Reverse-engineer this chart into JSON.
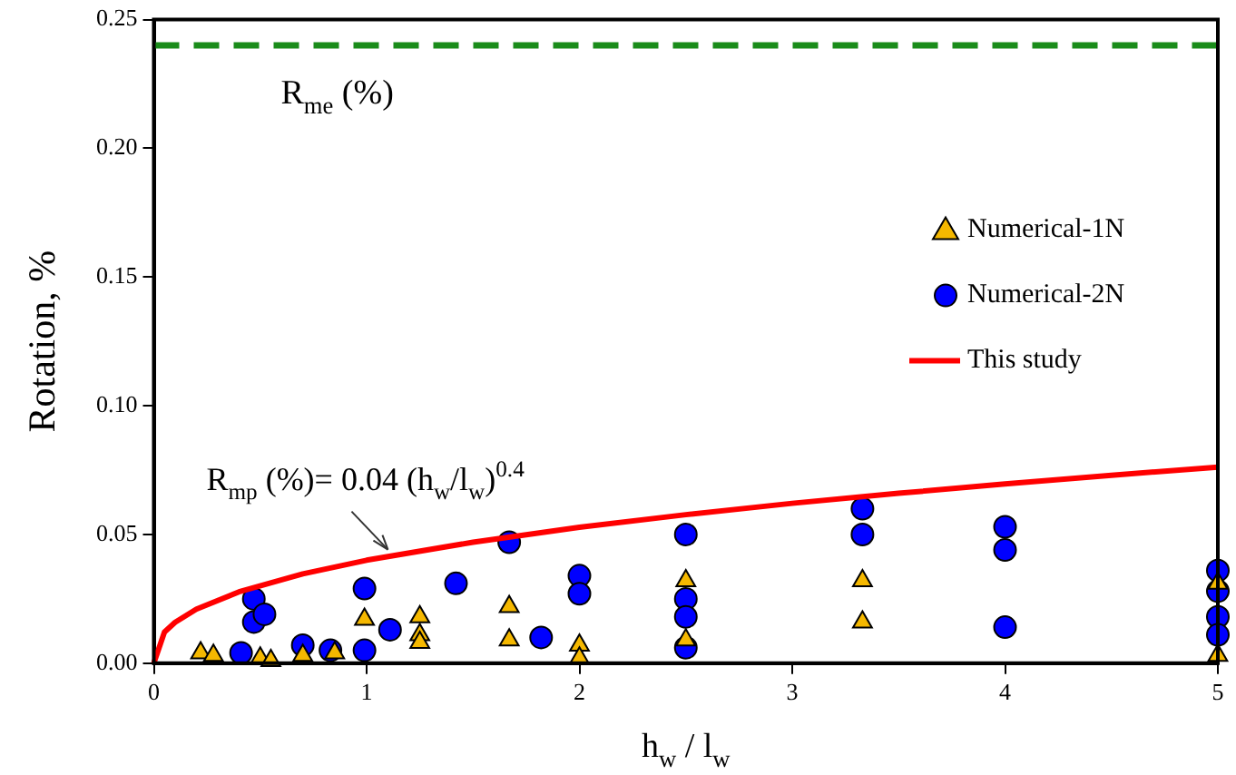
{
  "chart_data": {
    "type": "scatter",
    "xlabel": "h$_{w}$ / l$_{w}$",
    "ylabel": "Rotation, %",
    "xlim": [
      0,
      5
    ],
    "xticks": [
      0,
      1,
      2,
      3,
      4,
      5
    ],
    "ylim": [
      0,
      0.25
    ],
    "yticks": [
      {
        "value": 0,
        "label": "0.00"
      },
      0.05,
      {
        "value": 0.1,
        "label": "0.10"
      },
      0.15,
      {
        "value": 0.2,
        "label": "0.20"
      },
      0.25
    ],
    "grid": false,
    "legend": "right",
    "series": [
      {
        "name": "Numerical-1N",
        "color": "#f5b800",
        "marker": "triangle",
        "x": [
          0.22,
          0.28,
          0.5,
          0.55,
          0.7,
          0.85,
          0.99,
          1.25,
          1.25,
          1.25,
          1.67,
          1.67,
          2,
          2,
          2.5,
          2.5,
          3.33,
          3.33,
          5,
          5
        ],
        "values": [
          0.004,
          0.003,
          0.002,
          0.001,
          0.003,
          0.004,
          0.017,
          0.018,
          0.011,
          0.008,
          0.022,
          0.009,
          0.007,
          0.002,
          0.032,
          0.009,
          0.032,
          0.016,
          0.031,
          0.003
        ]
      },
      {
        "name": "Numerical-2N",
        "color": "#0000ff",
        "marker": "circle",
        "x": [
          0.41,
          0.47,
          0.47,
          0.52,
          0.7,
          0.83,
          0.99,
          0.99,
          1.11,
          1.42,
          1.67,
          1.82,
          2,
          2,
          2.5,
          2.5,
          2.5,
          2.5,
          3.33,
          3.33,
          4,
          4,
          4,
          5,
          5,
          5,
          5
        ],
        "values": [
          0.004,
          0.025,
          0.016,
          0.019,
          0.007,
          0.005,
          0.029,
          0.005,
          0.013,
          0.031,
          0.047,
          0.01,
          0.034,
          0.027,
          0.05,
          0.025,
          0.018,
          0.006,
          0.06,
          0.05,
          0.053,
          0.044,
          0.014,
          0.036,
          0.028,
          0.018,
          0.011
        ]
      },
      {
        "name": "This study",
        "type": "line",
        "color": "#ff0000",
        "marker": "none",
        "x": [
          0,
          0.05,
          0.1,
          0.2,
          0.4,
          0.7,
          1,
          1.5,
          2,
          2.5,
          3,
          3.5,
          4,
          4.5,
          5
        ],
        "values": [
          0,
          0.0121,
          0.0159,
          0.021,
          0.0277,
          0.0347,
          0.04,
          0.047,
          0.0528,
          0.0577,
          0.0621,
          0.066,
          0.0696,
          0.073,
          0.0762
        ]
      }
    ],
    "ref_lines": [
      {
        "axis": "y",
        "value": 0.24,
        "label": "R$_{me}$ (%)",
        "color": "#1a8c1a",
        "line_style": "dashed"
      }
    ],
    "annotations": [
      {
        "text": "R$_{mp}$ (%)= 0.04 (h$_{w}$/l$_{w}$)$^{0.4}$",
        "x": 1.1,
        "y": 0.042
      }
    ]
  }
}
